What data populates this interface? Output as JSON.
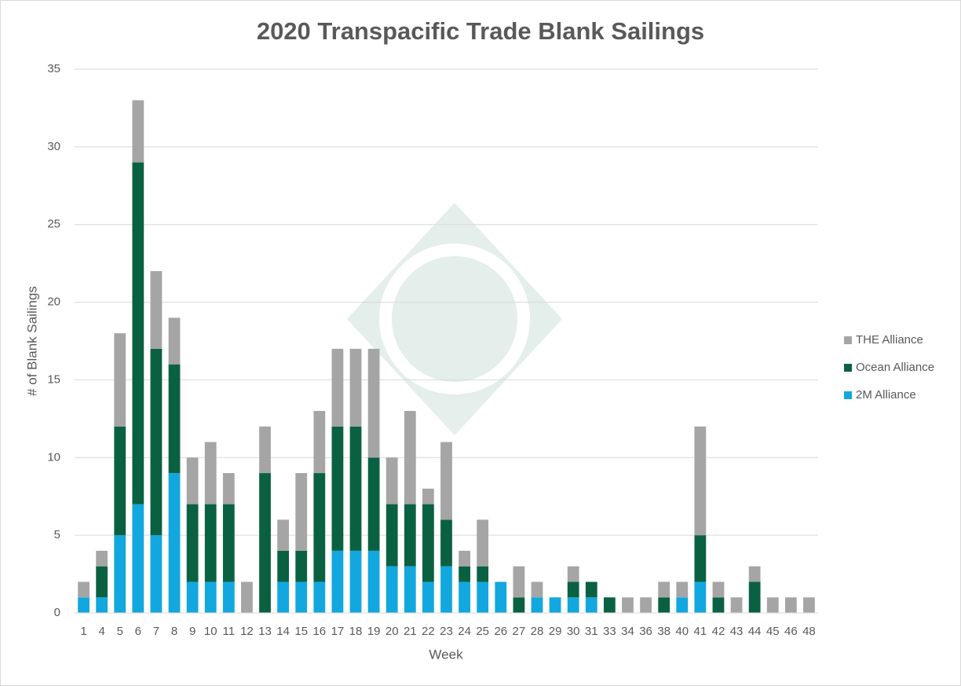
{
  "chart_data": {
    "type": "stacked_bar",
    "title": "2020 Transpacific Trade Blank Sailings",
    "x_label": "Week",
    "y_label": "# of Blank Sailings",
    "categories": [
      "1",
      "4",
      "5",
      "6",
      "7",
      "8",
      "9",
      "10",
      "11",
      "12",
      "13",
      "14",
      "15",
      "16",
      "17",
      "18",
      "19",
      "20",
      "21",
      "22",
      "23",
      "24",
      "25",
      "26",
      "27",
      "28",
      "29",
      "30",
      "31",
      "33",
      "34",
      "36",
      "38",
      "40",
      "41",
      "42",
      "43",
      "44",
      "45",
      "46",
      "48"
    ],
    "series": [
      {
        "name": "2M Alliance",
        "color": "#12a7df",
        "values": [
          1,
          1,
          5,
          7,
          5,
          9,
          2,
          2,
          2,
          0,
          0,
          2,
          2,
          2,
          4,
          4,
          4,
          3,
          3,
          2,
          3,
          2,
          2,
          2,
          0,
          1,
          1,
          1,
          1,
          0,
          0,
          0,
          0,
          1,
          2,
          0,
          0,
          0,
          0,
          0,
          0
        ]
      },
      {
        "name": "Ocean Alliance",
        "color": "#0a6142",
        "values": [
          0,
          2,
          7,
          22,
          12,
          7,
          5,
          5,
          5,
          0,
          9,
          2,
          2,
          7,
          8,
          8,
          6,
          4,
          4,
          5,
          3,
          1,
          1,
          0,
          1,
          0,
          0,
          1,
          1,
          1,
          0,
          0,
          1,
          0,
          3,
          1,
          0,
          2,
          0,
          0,
          0
        ]
      },
      {
        "name": "THE Alliance",
        "color": "#a5a5a5",
        "values": [
          1,
          1,
          6,
          4,
          5,
          3,
          3,
          4,
          2,
          2,
          3,
          2,
          5,
          4,
          5,
          5,
          7,
          3,
          6,
          1,
          5,
          1,
          3,
          0,
          2,
          1,
          0,
          1,
          0,
          0,
          1,
          1,
          1,
          1,
          7,
          1,
          1,
          1,
          1,
          1,
          1
        ]
      }
    ],
    "ylim": [
      0,
      35
    ],
    "yticks": [
      0,
      5,
      10,
      15,
      20,
      25,
      30,
      35
    ],
    "grid": true,
    "legend": "right"
  }
}
